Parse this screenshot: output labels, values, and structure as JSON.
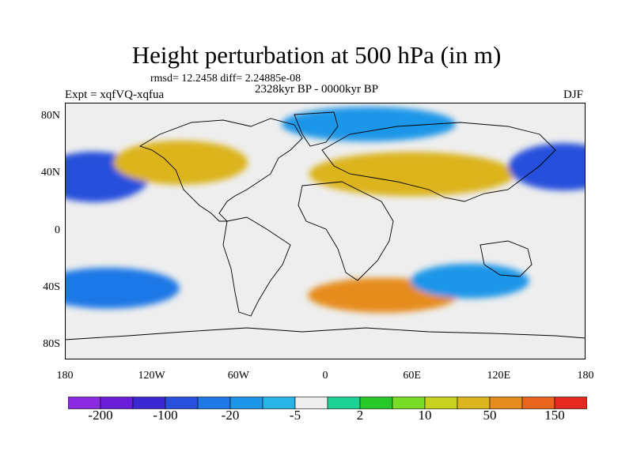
{
  "title": "Height perturbation at 500 hPa (in m)",
  "stats": "rmsd= 12.2458 diff= 2.24885e-08",
  "period": "2328kyr BP - 0000kyr BP",
  "experiment": "Expt = xqfVQ-xqfua",
  "season": "DJF",
  "map": {
    "projection": "cylindrical-equidistant",
    "lon_range": [
      -180,
      180
    ],
    "lat_range": [
      -90,
      90
    ],
    "lat_ticks": [
      {
        "value": 80,
        "label": "80N"
      },
      {
        "value": 40,
        "label": "40N"
      },
      {
        "value": 0,
        "label": "0"
      },
      {
        "value": -40,
        "label": "40S"
      },
      {
        "value": -80,
        "label": "80S"
      }
    ],
    "lon_ticks": [
      {
        "value": -180,
        "label": "180"
      },
      {
        "value": -120,
        "label": "120W"
      },
      {
        "value": -60,
        "label": "60W"
      },
      {
        "value": 0,
        "label": "0"
      },
      {
        "value": 60,
        "label": "60E"
      },
      {
        "value": 120,
        "label": "120E"
      },
      {
        "value": 180,
        "label": "180"
      }
    ]
  },
  "colorbar": {
    "colors": [
      "#8a2be2",
      "#6a1ed8",
      "#3c28d2",
      "#2850dc",
      "#1e78e6",
      "#1e96e8",
      "#28b4e8",
      "#eeeeee",
      "#1ed296",
      "#28c828",
      "#78dc28",
      "#c8d21e",
      "#dcb41e",
      "#e68c1e",
      "#e6641e",
      "#e6281e"
    ],
    "labels": [
      {
        "index": 1,
        "text": "-200"
      },
      {
        "index": 3,
        "text": "-100"
      },
      {
        "index": 5,
        "text": "-20"
      },
      {
        "index": 7,
        "text": "-5"
      },
      {
        "index": 9,
        "text": "2"
      },
      {
        "index": 11,
        "text": "10"
      },
      {
        "index": 13,
        "text": "50"
      },
      {
        "index": 15,
        "text": "150"
      }
    ]
  },
  "field_regions": [
    {
      "name": "north-pacific-low",
      "color_index": 3,
      "lon": -160,
      "lat": 38
    },
    {
      "name": "north-america-high",
      "color_index": 12,
      "lon": -100,
      "lat": 48
    },
    {
      "name": "eurasia-high",
      "color_index": 12,
      "lon": 60,
      "lat": 40
    },
    {
      "name": "arctic-atlantic-low",
      "color_index": 5,
      "lon": 30,
      "lat": 75
    },
    {
      "name": "west-pacific-low",
      "color_index": 3,
      "lon": 165,
      "lat": 45
    },
    {
      "name": "south-pacific-low",
      "color_index": 4,
      "lon": -150,
      "lat": -40
    },
    {
      "name": "south-atlantic-high",
      "color_index": 13,
      "lon": 40,
      "lat": -45
    },
    {
      "name": "southern-indian-low",
      "color_index": 5,
      "lon": 100,
      "lat": -35
    }
  ]
}
